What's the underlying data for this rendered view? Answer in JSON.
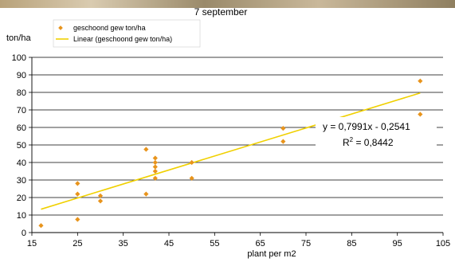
{
  "chart_data": {
    "type": "scatter",
    "title": "7 september",
    "ylabel": "ton/ha",
    "xlabel": "plant per m2",
    "xlim": [
      15,
      105
    ],
    "ylim": [
      0,
      100
    ],
    "xticks": [
      15,
      25,
      35,
      45,
      55,
      65,
      75,
      85,
      95,
      105
    ],
    "yticks": [
      0,
      10,
      20,
      30,
      40,
      50,
      60,
      70,
      80,
      90,
      100
    ],
    "grid": "horizontal",
    "legend_position": "top-left",
    "series": [
      {
        "name": "geschoond gew ton/ha",
        "kind": "points",
        "color": "#e8941c",
        "points": [
          [
            17,
            4
          ],
          [
            25,
            7.5
          ],
          [
            25,
            22
          ],
          [
            25,
            28
          ],
          [
            30,
            18
          ],
          [
            30,
            21
          ],
          [
            40,
            22
          ],
          [
            40,
            47.5
          ],
          [
            42,
            31
          ],
          [
            42,
            35
          ],
          [
            42,
            37.5
          ],
          [
            42,
            40
          ],
          [
            42,
            42.5
          ],
          [
            50,
            31
          ],
          [
            50,
            40
          ],
          [
            70,
            52
          ],
          [
            70,
            59.5
          ],
          [
            100,
            67.5
          ],
          [
            100,
            86.5
          ]
        ]
      },
      {
        "name": "Linear (geschoond gew ton/ha)",
        "kind": "trendline",
        "color": "#f0d000",
        "slope": 0.7991,
        "intercept": -0.2541,
        "x_range": [
          17,
          100
        ]
      }
    ],
    "annotations": {
      "equation": "y = 0,7991x - 0,2541",
      "r2_prefix": "R",
      "r2_sup": "2",
      "r2_suffix": " = 0,8442"
    }
  }
}
